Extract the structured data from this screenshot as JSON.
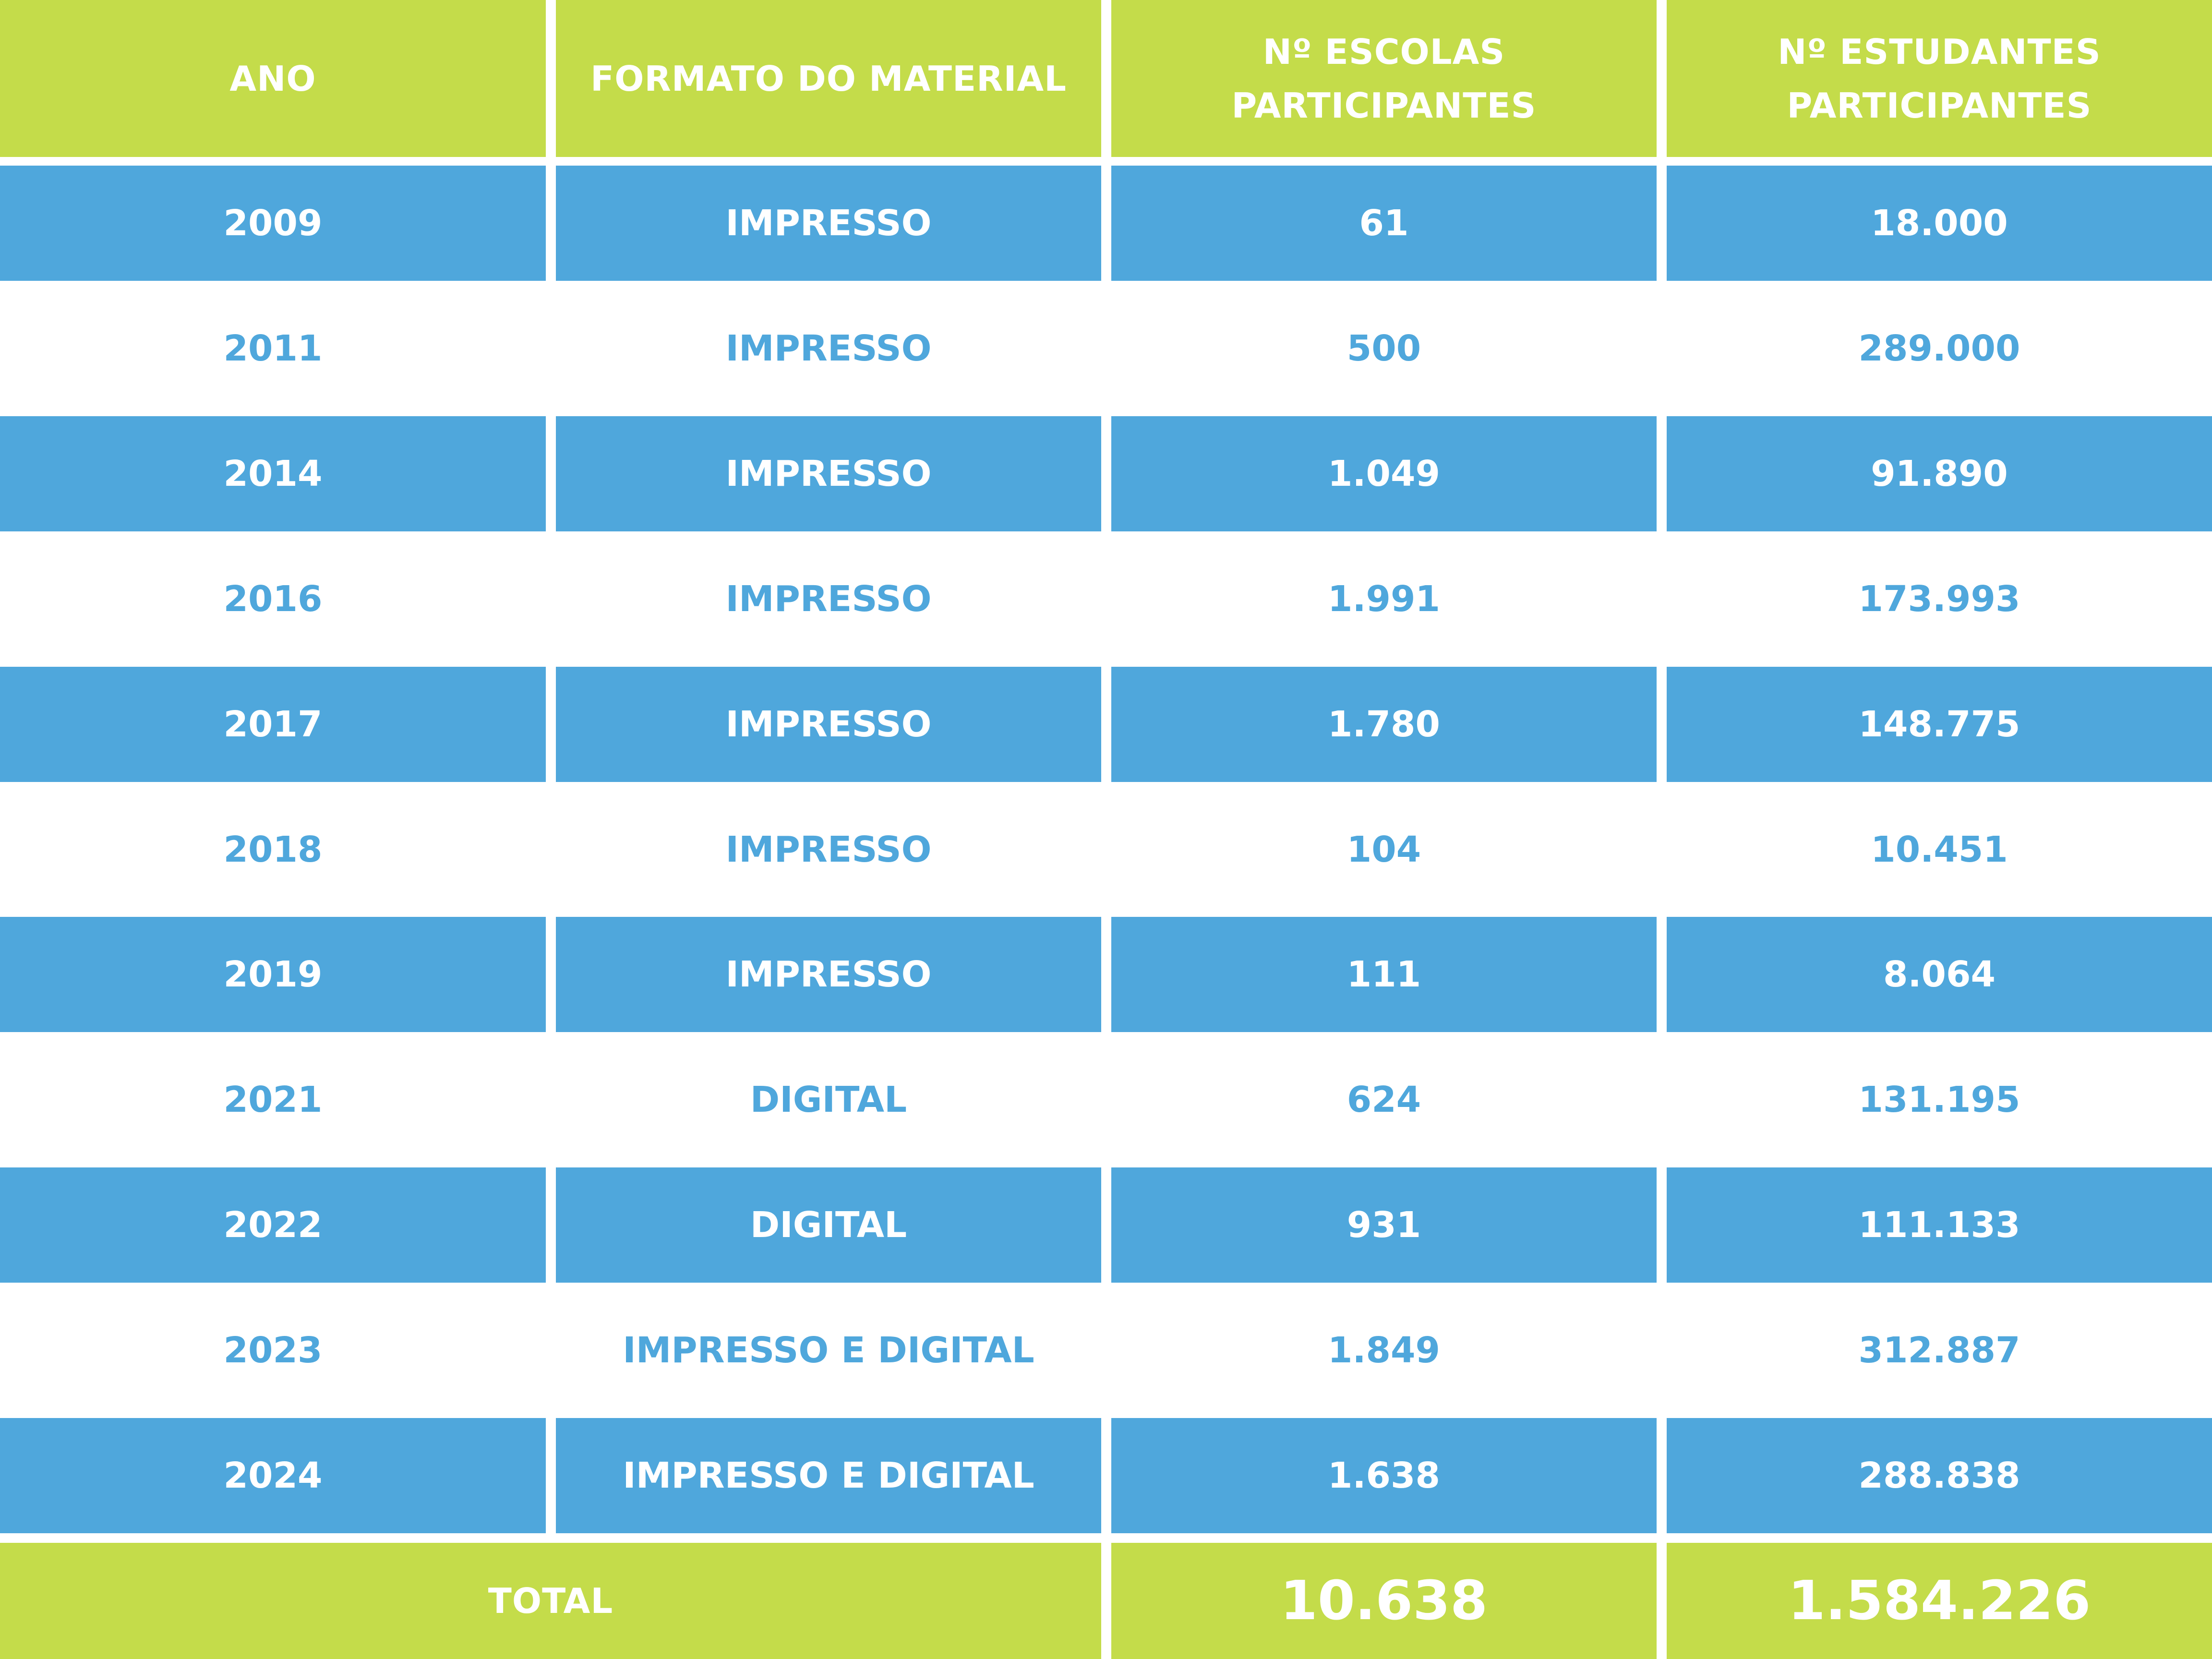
{
  "colors": {
    "header_green": "#c4dc4a",
    "row_blue": "#4fa7dc",
    "row_white": "#ffffff",
    "text_on_blue": "#ffffff",
    "text_on_white": "#4fa7dc"
  },
  "table": {
    "headers": {
      "ano": "ANO",
      "formato": "FORMATO DO MATERIAL",
      "escolas_line1": "Nº ESCOLAS",
      "escolas_line2": "PARTICIPANTES",
      "estudantes_line1": "Nº ESTUDANTES",
      "estudantes_line2": "PARTICIPANTES"
    },
    "rows": [
      {
        "ano": "2009",
        "formato": "IMPRESSO",
        "escolas": "61",
        "estudantes": "18.000"
      },
      {
        "ano": "2011",
        "formato": "IMPRESSO",
        "escolas": "500",
        "estudantes": "289.000"
      },
      {
        "ano": "2014",
        "formato": "IMPRESSO",
        "escolas": "1.049",
        "estudantes": "91.890"
      },
      {
        "ano": "2016",
        "formato": "IMPRESSO",
        "escolas": "1.991",
        "estudantes": "173.993"
      },
      {
        "ano": "2017",
        "formato": "IMPRESSO",
        "escolas": "1.780",
        "estudantes": "148.775"
      },
      {
        "ano": "2018",
        "formato": "IMPRESSO",
        "escolas": "104",
        "estudantes": "10.451"
      },
      {
        "ano": "2019",
        "formato": "IMPRESSO",
        "escolas": "111",
        "estudantes": "8.064"
      },
      {
        "ano": "2021",
        "formato": "DIGITAL",
        "escolas": "624",
        "estudantes": "131.195"
      },
      {
        "ano": "2022",
        "formato": "DIGITAL",
        "escolas": "931",
        "estudantes": "111.133"
      },
      {
        "ano": "2023",
        "formato": "IMPRESSO E DIGITAL",
        "escolas": "1.849",
        "estudantes": "312.887"
      },
      {
        "ano": "2024",
        "formato": "IMPRESSO E DIGITAL",
        "escolas": "1.638",
        "estudantes": "288.838"
      }
    ],
    "total": {
      "label": "TOTAL",
      "escolas": "10.638",
      "estudantes": "1.584.226"
    }
  }
}
